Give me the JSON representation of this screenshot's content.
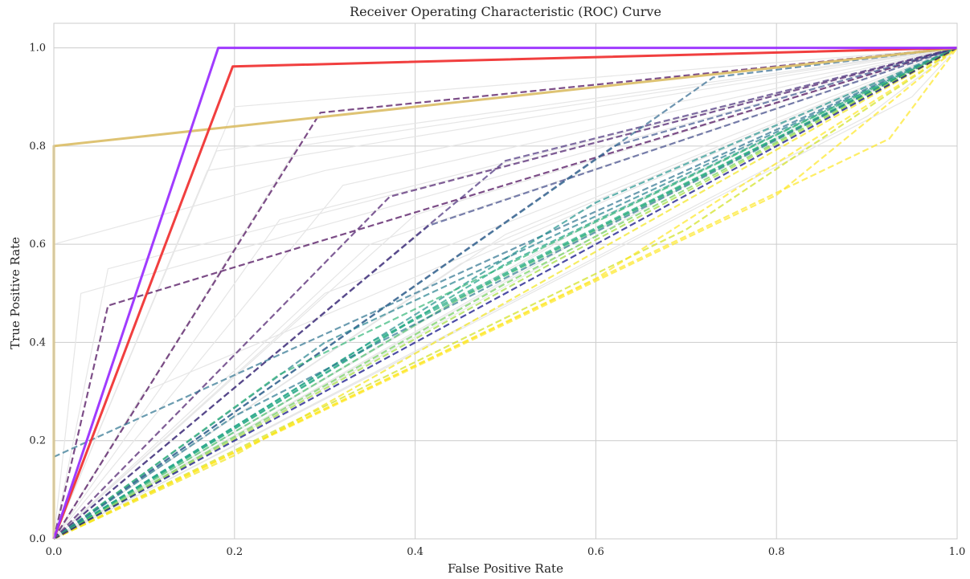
{
  "chart_data": {
    "type": "line",
    "title": "Receiver Operating Characteristic (ROC) Curve",
    "xlabel": "False Positive Rate",
    "ylabel": "True Positive Rate",
    "xlim": [
      0.0,
      1.0
    ],
    "ylim": [
      0.0,
      1.05
    ],
    "x_ticks": [
      "0.0",
      "0.2",
      "0.4",
      "0.6",
      "0.8",
      "1.0"
    ],
    "y_ticks": [
      "0.0",
      "0.2",
      "0.4",
      "0.6",
      "0.8",
      "1.0"
    ],
    "grid": true,
    "legend": "none",
    "background_curves": {
      "color": "#e6e6e6",
      "curves": [
        [
          [
            0,
            0
          ],
          [
            0.03,
            0.5
          ],
          [
            1,
            1
          ]
        ],
        [
          [
            0,
            0
          ],
          [
            0.06,
            0.55
          ],
          [
            1,
            1
          ]
        ],
        [
          [
            0,
            0
          ],
          [
            0.2,
            0.88
          ],
          [
            1,
            1
          ]
        ],
        [
          [
            0,
            0
          ],
          [
            0.18,
            0.79
          ],
          [
            1,
            1
          ]
        ],
        [
          [
            0,
            0
          ],
          [
            0.17,
            0.75
          ],
          [
            1,
            1
          ]
        ],
        [
          [
            0,
            0
          ],
          [
            0.27,
            0.8
          ],
          [
            1,
            1
          ]
        ],
        [
          [
            0,
            0
          ],
          [
            0.25,
            0.65
          ],
          [
            1,
            1
          ]
        ],
        [
          [
            0,
            0
          ],
          [
            0.32,
            0.72
          ],
          [
            1,
            1
          ]
        ],
        [
          [
            0,
            0
          ],
          [
            0.35,
            0.6
          ],
          [
            1,
            1
          ]
        ],
        [
          [
            0,
            0
          ],
          [
            0.4,
            0.66
          ],
          [
            1,
            1
          ]
        ],
        [
          [
            0,
            0
          ],
          [
            0.5,
            0.62
          ],
          [
            1,
            1
          ]
        ],
        [
          [
            0,
            0
          ],
          [
            0.45,
            0.56
          ],
          [
            1,
            1
          ]
        ],
        [
          [
            0,
            0
          ],
          [
            0.55,
            0.6
          ],
          [
            1,
            1
          ]
        ],
        [
          [
            0,
            0
          ],
          [
            0.6,
            0.65
          ],
          [
            1,
            1
          ]
        ],
        [
          [
            0,
            0
          ],
          [
            0.7,
            0.72
          ],
          [
            1,
            1
          ]
        ],
        [
          [
            0,
            0
          ],
          [
            0.9,
            0.86
          ],
          [
            1,
            1
          ]
        ],
        [
          [
            0,
            0
          ],
          [
            0.95,
            0.9
          ],
          [
            1,
            1
          ]
        ],
        [
          [
            0,
            0.6
          ],
          [
            0.3,
            0.75
          ],
          [
            1,
            1
          ]
        ],
        [
          [
            0,
            0
          ],
          [
            0.1,
            0.3
          ],
          [
            1,
            1
          ]
        ],
        [
          [
            0,
            0
          ],
          [
            0.3,
            0.5
          ],
          [
            1,
            1
          ]
        ],
        [
          [
            0,
            0
          ],
          [
            0.55,
            0.58
          ],
          [
            1,
            1
          ]
        ],
        [
          [
            0,
            0
          ],
          [
            0.65,
            0.68
          ],
          [
            1,
            1
          ]
        ]
      ]
    },
    "series": [
      {
        "style": "dashed",
        "color": "#440154",
        "points": [
          [
            0,
            0
          ],
          [
            0.06,
            0.475
          ],
          [
            1,
            1
          ]
        ]
      },
      {
        "style": "dashed",
        "color": "#440154",
        "points": [
          [
            0,
            0
          ],
          [
            0.295,
            0.868
          ],
          [
            1,
            1
          ]
        ]
      },
      {
        "style": "dashed",
        "color": "#48186a",
        "points": [
          [
            0,
            0
          ],
          [
            0.372,
            0.697
          ],
          [
            1,
            1
          ]
        ]
      },
      {
        "style": "dashed",
        "color": "#3e4989",
        "points": [
          [
            0,
            0
          ],
          [
            0.415,
            0.638
          ],
          [
            1,
            1
          ]
        ]
      },
      {
        "style": "dashed",
        "color": "#472d7b",
        "points": [
          [
            0,
            0
          ],
          [
            0.5,
            0.77
          ],
          [
            1,
            1
          ]
        ]
      },
      {
        "style": "dashed",
        "color": "#3b528b",
        "points": [
          [
            0,
            0
          ],
          [
            0.62,
            0.8
          ],
          [
            1,
            1
          ]
        ]
      },
      {
        "style": "dashed",
        "color": "#31688e",
        "points": [
          [
            0,
            0
          ],
          [
            0.73,
            0.94
          ],
          [
            1,
            1
          ]
        ]
      },
      {
        "style": "dashed",
        "color": "#2c728e",
        "points": [
          [
            0,
            0.167
          ],
          [
            1,
            1
          ]
        ]
      },
      {
        "style": "dashed",
        "color": "#21918c",
        "points": [
          [
            0,
            0
          ],
          [
            0.6,
            0.685
          ],
          [
            1,
            1
          ]
        ]
      },
      {
        "style": "dashed",
        "color": "#26828e",
        "points": [
          [
            0,
            0
          ],
          [
            0.3,
            0.4
          ],
          [
            1,
            1
          ]
        ]
      },
      {
        "style": "dashed",
        "color": "#1fa088",
        "points": [
          [
            0,
            0
          ],
          [
            0.5,
            0.56
          ],
          [
            1,
            1
          ]
        ]
      },
      {
        "style": "dashed",
        "color": "#28ae80",
        "points": [
          [
            0,
            0
          ],
          [
            0.4,
            0.45
          ],
          [
            1,
            1
          ]
        ]
      },
      {
        "style": "dashed",
        "color": "#35b779",
        "points": [
          [
            0,
            0
          ],
          [
            0.25,
            0.335
          ],
          [
            1,
            1
          ]
        ]
      },
      {
        "style": "dashed",
        "color": "#4ac16d",
        "points": [
          [
            0,
            0
          ],
          [
            0.45,
            0.49
          ],
          [
            1,
            1
          ]
        ]
      },
      {
        "style": "dashed",
        "color": "#22a884",
        "points": [
          [
            0,
            0
          ],
          [
            0.35,
            0.4
          ],
          [
            1,
            1
          ]
        ]
      },
      {
        "style": "dashed",
        "color": "#2a788e",
        "points": [
          [
            0,
            0
          ],
          [
            0.2,
            0.25
          ],
          [
            1,
            1
          ]
        ]
      },
      {
        "style": "dashed",
        "color": "#6ece58",
        "points": [
          [
            0,
            0
          ],
          [
            0.5,
            0.52
          ],
          [
            1,
            1
          ]
        ]
      },
      {
        "style": "dashed",
        "color": "#a0da39",
        "points": [
          [
            0,
            0
          ],
          [
            0.55,
            0.56
          ],
          [
            1,
            1
          ]
        ]
      },
      {
        "style": "dashed",
        "color": "#d0e11c",
        "points": [
          [
            0,
            0
          ],
          [
            0.7,
            0.63
          ],
          [
            1,
            1
          ]
        ]
      },
      {
        "style": "dashed",
        "color": "#fde725",
        "points": [
          [
            0,
            0
          ],
          [
            0.8,
            0.7
          ],
          [
            1,
            1
          ]
        ]
      },
      {
        "style": "dashed",
        "color": "#fde725",
        "points": [
          [
            0,
            0
          ],
          [
            0.925,
            0.815
          ],
          [
            1,
            1
          ]
        ]
      },
      {
        "style": "dashed",
        "color": "#fde725",
        "points": [
          [
            0,
            0
          ],
          [
            0.6,
            0.53
          ],
          [
            1,
            1
          ]
        ]
      },
      {
        "style": "dashed",
        "color": "#f2e51d",
        "points": [
          [
            0,
            0
          ],
          [
            0.2,
            0.17
          ],
          [
            1,
            1
          ]
        ]
      },
      {
        "style": "dashed",
        "color": "#000080",
        "points": [
          [
            0,
            0
          ],
          [
            1,
            1
          ]
        ]
      },
      {
        "style": "solid",
        "color": "#dcc06c",
        "points": [
          [
            0,
            0
          ],
          [
            0,
            0.8
          ],
          [
            1,
            1
          ]
        ]
      },
      {
        "style": "solid",
        "color": "#f03535",
        "points": [
          [
            0,
            0
          ],
          [
            0.198,
            0.962
          ],
          [
            1,
            1
          ]
        ]
      },
      {
        "style": "solid",
        "color": "#9b30ff",
        "points": [
          [
            0,
            0
          ],
          [
            0.182,
            1.0
          ],
          [
            1,
            1
          ]
        ]
      }
    ]
  }
}
